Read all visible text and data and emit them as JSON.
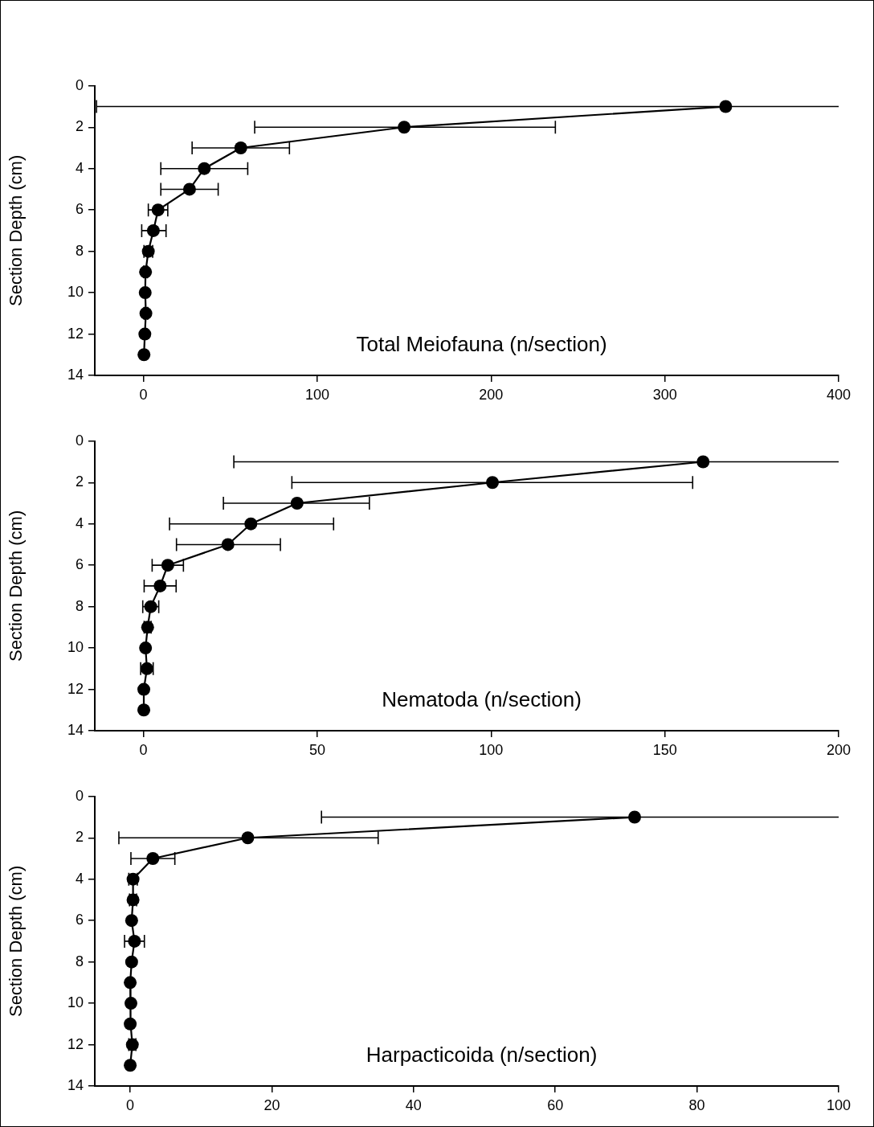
{
  "chart_data": [
    {
      "type": "line",
      "title": "Total Meiofauna (n/section)",
      "ylabel": "Section Depth (cm)",
      "xlim": [
        -28,
        400
      ],
      "xticks": [
        0,
        100,
        200,
        300,
        400
      ],
      "ylim": [
        14,
        0
      ],
      "yticks": [
        0,
        2,
        4,
        6,
        8,
        10,
        12,
        14
      ],
      "grid": false,
      "legend": false,
      "marker": "circle",
      "line_style": "solid",
      "series": [
        {
          "color": "#000000",
          "x": [
            335,
            150,
            56,
            35,
            26.5,
            8.4,
            5.7,
            2.8,
            1.2,
            1.0,
            1.4,
            0.8,
            0.3
          ],
          "values": [
            1,
            2,
            3,
            4,
            5,
            6,
            7,
            8,
            9,
            10,
            11,
            12,
            13
          ],
          "xerrors": [
            [
              -27,
              400
            ],
            [
              64,
              237
            ],
            [
              28,
              84
            ],
            [
              10,
              60
            ],
            [
              10,
              43
            ],
            [
              2.8,
              14
            ],
            [
              -1,
              13
            ],
            2.5,
            1,
            null,
            1,
            null,
            null
          ]
        }
      ]
    },
    {
      "type": "line",
      "title": "Nematoda (n/section)",
      "ylabel": "Section Depth (cm)",
      "xlim": [
        -14,
        200
      ],
      "xticks": [
        0,
        50,
        100,
        150,
        200
      ],
      "ylim": [
        14,
        0
      ],
      "yticks": [
        0,
        2,
        4,
        6,
        8,
        10,
        12,
        14
      ],
      "grid": false,
      "legend": false,
      "marker": "circle",
      "line_style": "solid",
      "series": [
        {
          "color": "#000000",
          "x": [
            161,
            100.4,
            44.2,
            30.9,
            24.3,
            7.0,
            4.8,
            2.1,
            1.2,
            0.6,
            1.0,
            0.1,
            0.1
          ],
          "values": [
            1,
            2,
            3,
            4,
            5,
            6,
            7,
            8,
            9,
            10,
            11,
            12,
            13
          ],
          "xerrors": [
            [
              26,
              200
            ],
            [
              42.7,
              158
            ],
            [
              23,
              65
            ],
            [
              7.5,
              54.7
            ],
            [
              9.5,
              39.4
            ],
            [
              2.5,
              11.5
            ],
            [
              0.2,
              9.4
            ],
            2.3,
            1,
            null,
            1.8,
            null,
            null
          ]
        }
      ]
    },
    {
      "type": "line",
      "title": "Harpacticoida (n/section)",
      "ylabel": "Section Depth (cm)",
      "xlim": [
        -5,
        100
      ],
      "xticks": [
        0,
        20,
        40,
        60,
        80,
        100
      ],
      "ylim": [
        14,
        0
      ],
      "yticks": [
        0,
        2,
        4,
        6,
        8,
        10,
        12,
        14
      ],
      "grid": false,
      "legend": false,
      "marker": "circle",
      "line_style": "solid",
      "series": [
        {
          "color": "#000000",
          "x": [
            71.2,
            16.6,
            3.2,
            0.4,
            0.4,
            0.2,
            0.6,
            0.2,
            0,
            0.1,
            0,
            0.3,
            0
          ],
          "values": [
            1,
            2,
            3,
            4,
            5,
            6,
            7,
            8,
            9,
            10,
            11,
            12,
            13
          ],
          "xerrors": [
            [
              27,
              100
            ],
            [
              -1.6,
              35
            ],
            [
              0.1,
              6.3
            ],
            0.6,
            0.5,
            null,
            1.4,
            null,
            null,
            null,
            null,
            0.5,
            null
          ]
        }
      ]
    }
  ]
}
